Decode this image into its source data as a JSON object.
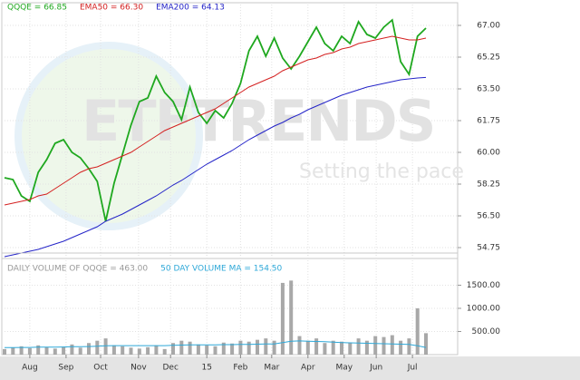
{
  "chart_data": [
    {
      "type": "line",
      "annotations": [
        "ETFTRENDS",
        "Setting the pace"
      ],
      "x": [
        0,
        1,
        2,
        3,
        4,
        5,
        6,
        7,
        8,
        9,
        10,
        11,
        12,
        13,
        14,
        15,
        16,
        17,
        18,
        19,
        20,
        21,
        22,
        23,
        24,
        25,
        26,
        27,
        28,
        29,
        30,
        31,
        32,
        33,
        34,
        35,
        36,
        37,
        38,
        39,
        40,
        41,
        42,
        43,
        44,
        45,
        46,
        47,
        48,
        49,
        50
      ],
      "xlim": [
        0,
        50
      ],
      "ylim": [
        54.15,
        67.65
      ],
      "yticks": [
        {
          "value": 67,
          "label": "67.00"
        },
        {
          "value": 65.25,
          "label": "65.25"
        },
        {
          "value": 63.5,
          "label": "63.50"
        },
        {
          "value": 61.75,
          "label": "61.75"
        },
        {
          "value": 60,
          "label": "60.00"
        },
        {
          "value": 58.25,
          "label": "58.25"
        },
        {
          "value": 56.5,
          "label": "56.50"
        },
        {
          "value": 54.75,
          "label": "54.75"
        }
      ],
      "grid": true,
      "series": [
        {
          "name": "QQQE = 66.85",
          "color": "#1fa81f",
          "values": [
            58.6,
            58.5,
            57.6,
            57.3,
            58.9,
            59.6,
            60.5,
            60.7,
            60.0,
            59.7,
            59.1,
            58.4,
            56.2,
            58.3,
            59.9,
            61.5,
            62.8,
            63.0,
            64.2,
            63.3,
            62.8,
            61.8,
            63.6,
            62.2,
            61.6,
            62.3,
            61.9,
            62.7,
            63.8,
            65.6,
            66.4,
            65.3,
            66.3,
            65.2,
            64.6,
            65.3,
            66.1,
            66.9,
            66.0,
            65.6,
            66.4,
            66.0,
            67.2,
            66.5,
            66.3,
            66.9,
            67.3,
            65.0,
            64.3,
            66.4,
            66.85
          ]
        },
        {
          "name": "EMA50 = 66.30",
          "color": "#d42020",
          "values": [
            57.1,
            57.2,
            57.3,
            57.4,
            57.6,
            57.7,
            58.0,
            58.3,
            58.6,
            58.9,
            59.1,
            59.2,
            59.4,
            59.6,
            59.8,
            60.0,
            60.3,
            60.6,
            60.9,
            61.2,
            61.4,
            61.6,
            61.8,
            62.0,
            62.2,
            62.4,
            62.7,
            63.0,
            63.3,
            63.6,
            63.8,
            64.0,
            64.2,
            64.5,
            64.7,
            64.9,
            65.1,
            65.2,
            65.4,
            65.5,
            65.7,
            65.8,
            66.0,
            66.1,
            66.2,
            66.3,
            66.4,
            66.3,
            66.2,
            66.2,
            66.3
          ]
        },
        {
          "name": "EMA200 = 64.13",
          "color": "#2424c8",
          "values": [
            54.25,
            54.35,
            54.45,
            54.55,
            54.65,
            54.8,
            54.95,
            55.1,
            55.3,
            55.5,
            55.7,
            55.9,
            56.2,
            56.4,
            56.6,
            56.85,
            57.1,
            57.35,
            57.6,
            57.9,
            58.2,
            58.45,
            58.75,
            59.05,
            59.35,
            59.6,
            59.85,
            60.1,
            60.4,
            60.7,
            60.95,
            61.2,
            61.45,
            61.65,
            61.9,
            62.1,
            62.35,
            62.55,
            62.75,
            62.95,
            63.15,
            63.3,
            63.45,
            63.6,
            63.7,
            63.8,
            63.9,
            64.0,
            64.05,
            64.1,
            64.13
          ]
        }
      ]
    },
    {
      "type": "bar",
      "x": [
        0,
        1,
        2,
        3,
        4,
        5,
        6,
        7,
        8,
        9,
        10,
        11,
        12,
        13,
        14,
        15,
        16,
        17,
        18,
        19,
        20,
        21,
        22,
        23,
        24,
        25,
        26,
        27,
        28,
        29,
        30,
        31,
        32,
        33,
        34,
        35,
        36,
        37,
        38,
        39,
        40,
        41,
        42,
        43,
        44,
        45,
        46,
        47,
        48,
        49,
        50
      ],
      "xlim": [
        0,
        50
      ],
      "xticks": [
        {
          "value": 3,
          "label": "Aug"
        },
        {
          "value": 7.3,
          "label": "Sep"
        },
        {
          "value": 11.4,
          "label": "Oct"
        },
        {
          "value": 15.9,
          "label": "Nov"
        },
        {
          "value": 19.7,
          "label": "Dec"
        },
        {
          "value": 24,
          "label": "15"
        },
        {
          "value": 28,
          "label": "Feb"
        },
        {
          "value": 31.7,
          "label": "Mar"
        },
        {
          "value": 36,
          "label": "Apr"
        },
        {
          "value": 40.3,
          "label": "May"
        },
        {
          "value": 44.1,
          "label": "Jun"
        },
        {
          "value": 48.4,
          "label": "Jul"
        }
      ],
      "ylim": [
        0,
        1960
      ],
      "yticks": [
        {
          "value": 1500,
          "label": "1500.00"
        },
        {
          "value": 1000,
          "label": "1000.00"
        },
        {
          "value": 500,
          "label": "500.00"
        }
      ],
      "grid": true,
      "series": [
        {
          "name": "DAILY VOLUME OF QQQE = 463.00",
          "type": "bar",
          "color": "#a8a8a8",
          "values": [
            120,
            150,
            180,
            140,
            200,
            160,
            130,
            170,
            220,
            150,
            250,
            300,
            350,
            200,
            180,
            150,
            130,
            160,
            200,
            120,
            250,
            300,
            280,
            220,
            200,
            180,
            260,
            240,
            300,
            280,
            320,
            350,
            300,
            1550,
            1600,
            400,
            300,
            350,
            250,
            300,
            280,
            260,
            350,
            300,
            400,
            380,
            420,
            300,
            350,
            1000,
            463
          ]
        },
        {
          "name": "50 DAY VOLUME MA = 154.50",
          "type": "line",
          "color": "#2ea8d8",
          "values": [
            150,
            150,
            155,
            155,
            160,
            160,
            160,
            165,
            170,
            170,
            175,
            180,
            190,
            195,
            195,
            195,
            195,
            195,
            195,
            195,
            200,
            205,
            210,
            210,
            210,
            210,
            215,
            215,
            220,
            220,
            225,
            230,
            230,
            260,
            290,
            295,
            290,
            285,
            280,
            270,
            260,
            255,
            250,
            245,
            240,
            235,
            230,
            225,
            220,
            190,
            154.5
          ]
        }
      ]
    }
  ]
}
